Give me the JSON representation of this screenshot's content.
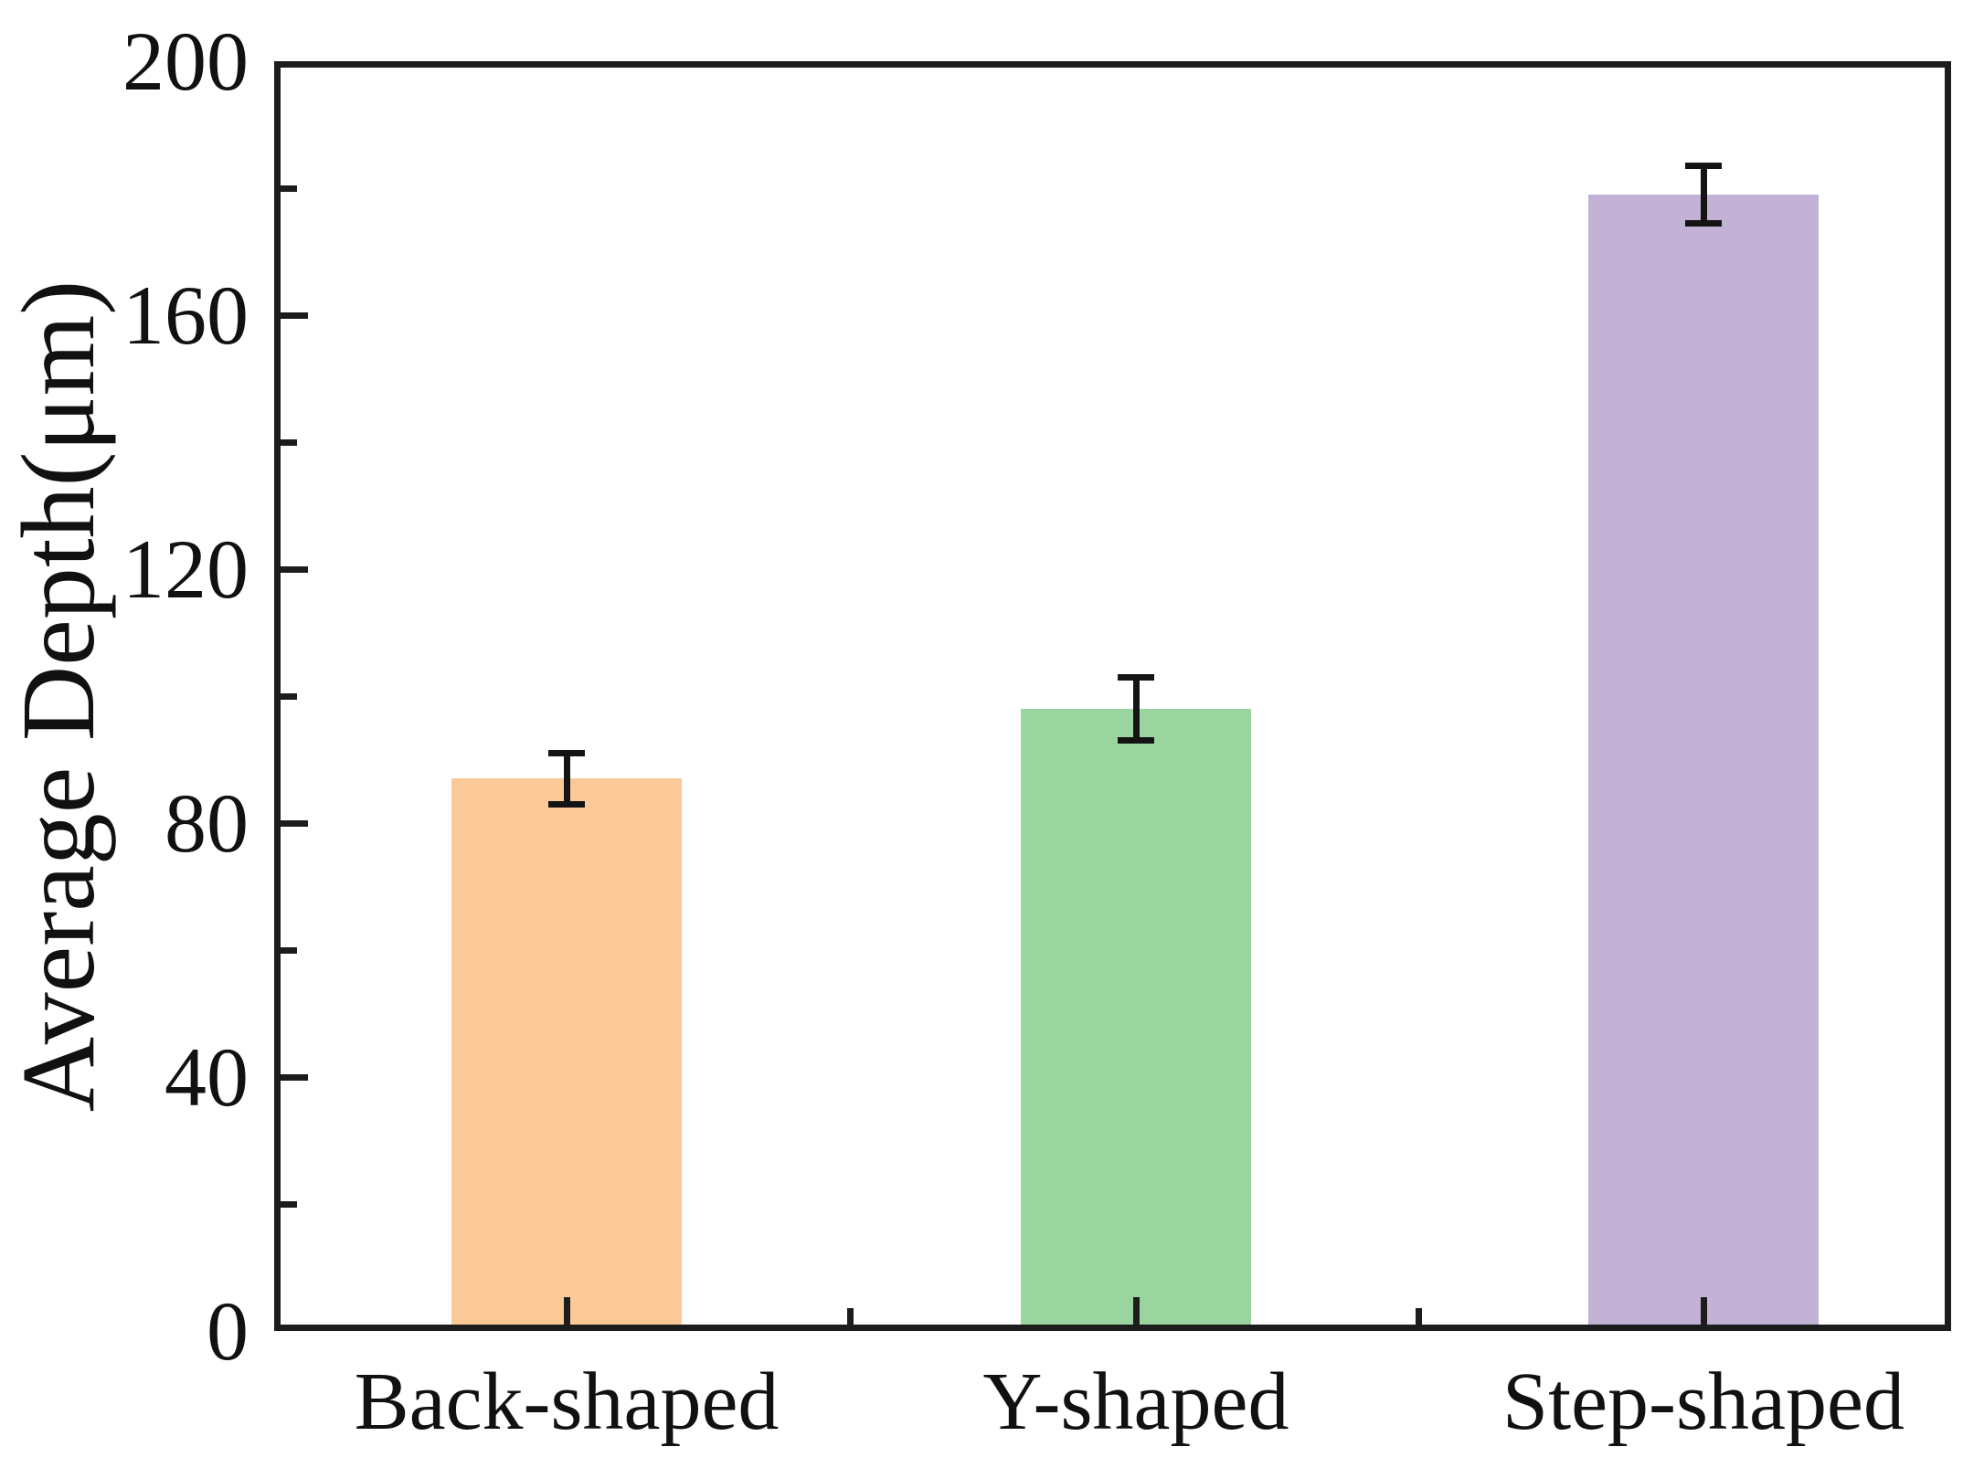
{
  "figure": {
    "background": "#ffffff",
    "axis_color": "#1c1c1c",
    "text_color": "#111111"
  },
  "chart_data": {
    "type": "bar",
    "title": "",
    "xlabel": "",
    "ylabel": "Average Depth(μm)",
    "categories": [
      "Back-shaped",
      "Y-shaped",
      "Step-shaped"
    ],
    "values": [
      87,
      98,
      179
    ],
    "errors": [
      4,
      5,
      4.5
    ],
    "bar_colors": [
      "#FBC997",
      "#9AD49E",
      "#C2B2D6"
    ],
    "error_bar_color": "#141414",
    "ylim": [
      0,
      200
    ],
    "yticks": [
      0,
      40,
      80,
      120,
      160,
      200
    ],
    "ytick_labels": [
      "0",
      "40",
      "80",
      "120",
      "160",
      "200"
    ],
    "ytick_minor_step": 20,
    "grid": false,
    "legend": null,
    "error_bars": true
  }
}
